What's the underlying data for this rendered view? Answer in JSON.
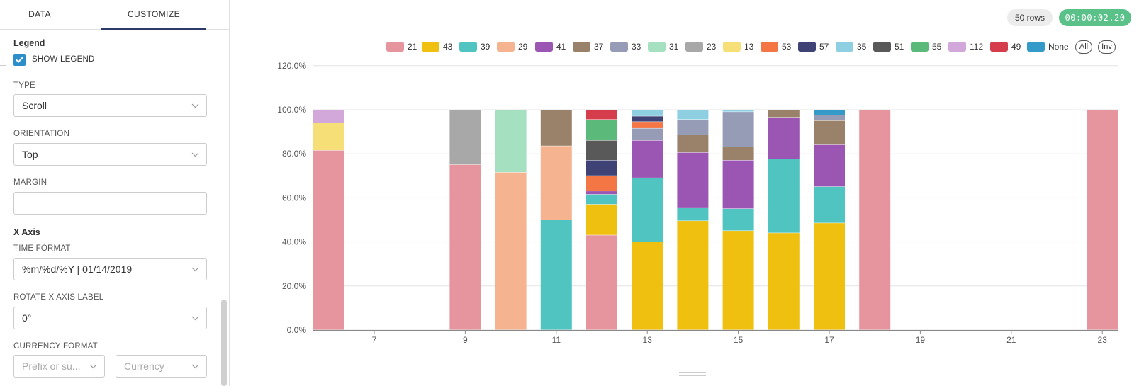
{
  "panel": {
    "tabs": [
      {
        "label": "DATA"
      },
      {
        "label": "CUSTOMIZE"
      }
    ],
    "legend_title": "Legend",
    "show_legend": {
      "label": "SHOW LEGEND",
      "checked": true
    },
    "type": {
      "label": "TYPE",
      "value": "Scroll"
    },
    "orientation": {
      "label": "ORIENTATION",
      "value": "Top"
    },
    "margin": {
      "label": "MARGIN",
      "value": ""
    },
    "xaxis_title": "X Axis",
    "time_format": {
      "label": "TIME FORMAT",
      "value": "%m/%d/%Y | 01/14/2019"
    },
    "rotate": {
      "label": "ROTATE X AXIS LABEL",
      "value": "0°"
    },
    "currency": {
      "label": "CURRENCY FORMAT",
      "prefix_placeholder": "Prefix or su...",
      "currency_placeholder": "Currency"
    }
  },
  "header": {
    "rows": "50 rows",
    "timer": "00:00:02.20"
  },
  "legend": {
    "items": [
      {
        "name": "21",
        "color": "#e6959e"
      },
      {
        "name": "43",
        "color": "#f0c010"
      },
      {
        "name": "39",
        "color": "#4fc4c1"
      },
      {
        "name": "29",
        "color": "#f5b48f"
      },
      {
        "name": "41",
        "color": "#9b56b3"
      },
      {
        "name": "37",
        "color": "#9a826a"
      },
      {
        "name": "33",
        "color": "#979cb6"
      },
      {
        "name": "31",
        "color": "#a5e0c0"
      },
      {
        "name": "23",
        "color": "#a8a8a8"
      },
      {
        "name": "13",
        "color": "#f5df76"
      },
      {
        "name": "53",
        "color": "#f47645"
      },
      {
        "name": "57",
        "color": "#3e4275"
      },
      {
        "name": "35",
        "color": "#8ecfe2"
      },
      {
        "name": "51",
        "color": "#595959"
      },
      {
        "name": "55",
        "color": "#5bba7a"
      },
      {
        "name": "112",
        "color": "#d1a8d9"
      },
      {
        "name": "49",
        "color": "#d53c4c"
      },
      {
        "name": "None",
        "color": "#349bc9"
      }
    ],
    "all_label": "All",
    "inv_label": "Inv"
  },
  "chart_data": {
    "type": "bar",
    "stacked": true,
    "normalized": true,
    "x_ticks": [
      "7",
      "9",
      "11",
      "13",
      "15",
      "17",
      "19",
      "21",
      "23"
    ],
    "y_ticks": [
      "0.0%",
      "20.0%",
      "40.0%",
      "60.0%",
      "80.0%",
      "100.0%",
      "120.0%"
    ],
    "ylim": [
      0,
      120
    ],
    "grid": true,
    "legend_position": "top",
    "bars": [
      {
        "x": 6,
        "segments": [
          [
            "21",
            81.5
          ],
          [
            "13",
            12.5
          ],
          [
            "112",
            6
          ]
        ]
      },
      {
        "x": 9,
        "segments": [
          [
            "21",
            75
          ],
          [
            "23",
            25
          ]
        ]
      },
      {
        "x": 10,
        "segments": [
          [
            "29",
            71.5
          ],
          [
            "31",
            28.5
          ]
        ]
      },
      {
        "x": 11,
        "segments": [
          [
            "39",
            50
          ],
          [
            "29",
            33.5
          ],
          [
            "37",
            16.5
          ]
        ]
      },
      {
        "x": 12,
        "segments": [
          [
            "21",
            43
          ],
          [
            "43",
            14
          ],
          [
            "39",
            4.5
          ],
          [
            "41",
            1.5
          ],
          [
            "53",
            7
          ],
          [
            "57",
            7
          ],
          [
            "51",
            9
          ],
          [
            "55",
            9.5
          ],
          [
            "49",
            4.5
          ]
        ]
      },
      {
        "x": 13,
        "segments": [
          [
            "43",
            40
          ],
          [
            "39",
            29
          ],
          [
            "41",
            17
          ],
          [
            "33",
            5.5
          ],
          [
            "53",
            3
          ],
          [
            "57",
            2.5
          ],
          [
            "35",
            3
          ]
        ]
      },
      {
        "x": 14,
        "segments": [
          [
            "43",
            49.5
          ],
          [
            "39",
            6
          ],
          [
            "41",
            25
          ],
          [
            "37",
            8
          ],
          [
            "33",
            7
          ],
          [
            "35",
            4.5
          ]
        ]
      },
      {
        "x": 15,
        "segments": [
          [
            "43",
            45
          ],
          [
            "39",
            10
          ],
          [
            "41",
            22
          ],
          [
            "37",
            6
          ],
          [
            "33",
            16
          ],
          [
            "35",
            1
          ]
        ]
      },
      {
        "x": 16,
        "segments": [
          [
            "43",
            44
          ],
          [
            "39",
            33.5
          ],
          [
            "41",
            19
          ],
          [
            "37",
            3.5
          ]
        ]
      },
      {
        "x": 17,
        "segments": [
          [
            "43",
            48.5
          ],
          [
            "39",
            16.5
          ],
          [
            "41",
            19
          ],
          [
            "37",
            11
          ],
          [
            "33",
            2.5
          ],
          [
            "None",
            2.5
          ]
        ]
      },
      {
        "x": 18,
        "segments": [
          [
            "21",
            100
          ]
        ]
      },
      {
        "x": 23,
        "segments": [
          [
            "21",
            100
          ]
        ]
      }
    ]
  }
}
